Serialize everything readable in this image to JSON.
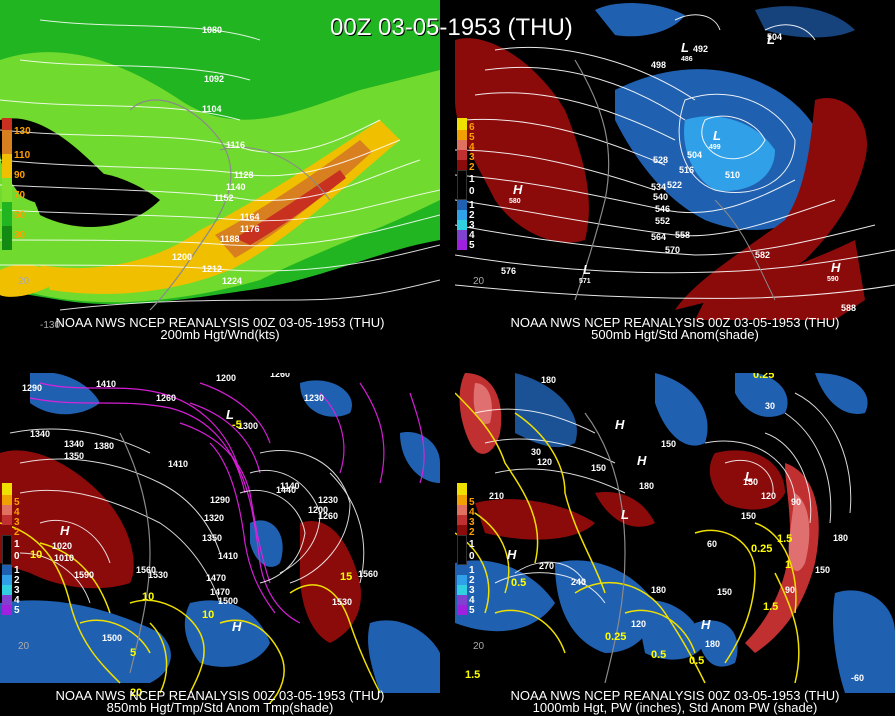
{
  "main_title": "00Z 03-05-1953 (THU)",
  "panels": [
    {
      "id": "p1",
      "line1": "NOAA NWS NCEP REANALYSIS 00Z 03-05-1953 (THU)",
      "line2": "200mb Hgt/Wnd(kts)",
      "legend": [
        "130",
        "110",
        "90",
        "70",
        "50",
        "30"
      ],
      "contour_labels": [
        "1080",
        "1092",
        "1104",
        "1116",
        "1128",
        "1140",
        "1152",
        "1164",
        "1176",
        "1188",
        "1200",
        "1212",
        "1224"
      ],
      "side_labels": [
        "20",
        "-130"
      ]
    },
    {
      "id": "p2",
      "line1": "NOAA NWS NCEP REANALYSIS 00Z 03-05-1953 (THU)",
      "line2": "500mb Hgt/Std Anom(shade)",
      "legend": [
        "6",
        "5",
        "4",
        "3",
        "2",
        "1",
        "0",
        "1",
        "2",
        "3",
        "4",
        "5"
      ],
      "contour_labels": [
        "492",
        "498",
        "504",
        "504",
        "510",
        "516",
        "522",
        "528",
        "534",
        "540",
        "546",
        "552",
        "558",
        "564",
        "570",
        "576",
        "582",
        "588"
      ],
      "highs_lows": [
        {
          "t": "L",
          "v": "486"
        },
        {
          "t": "L",
          "v": "499"
        },
        {
          "t": "L",
          "v": "571"
        },
        {
          "t": "H",
          "v": "580"
        },
        {
          "t": "H",
          "v": "590"
        },
        {
          "t": "L",
          "v": ""
        }
      ],
      "side_labels": [
        "20"
      ]
    },
    {
      "id": "p3",
      "line1": "NOAA NWS NCEP REANALYSIS 00Z 03-05-1953 (THU)",
      "line2": "850mb Hgt/Tmp/Std Anom Tmp(shade)",
      "legend": [
        "5",
        "4",
        "3",
        "2",
        "1",
        "0",
        "1",
        "2",
        "3",
        "4",
        "5"
      ],
      "contour_labels": [
        "1290",
        "1340",
        "1410",
        "1200",
        "1260",
        "1230",
        "1260",
        "1300",
        "1340",
        "1350",
        "1380",
        "1410",
        "1290",
        "1320",
        "1350",
        "1410",
        "1440",
        "1470",
        "1500",
        "1530",
        "1560",
        "1590",
        "1500",
        "1470",
        "1140",
        "1200",
        "1230",
        "1260",
        "1560",
        "1530",
        "1010",
        "1020"
      ],
      "temp_labels": [
        "10",
        "10",
        "10",
        "5",
        "15",
        "20",
        "-5"
      ],
      "side_labels": [
        "20"
      ]
    },
    {
      "id": "p4",
      "line1": "NOAA NWS NCEP REANALYSIS 00Z 03-05-1953 (THU)",
      "line2": "1000mb Hgt, PW (inches), Std Anom PW (shade)",
      "legend": [
        "5",
        "4",
        "3",
        "2",
        "1",
        "0",
        "1",
        "2",
        "3",
        "4",
        "5"
      ],
      "contour_labels": [
        "180",
        "150",
        "120",
        "150",
        "180",
        "60",
        "30",
        "210",
        "240",
        "270",
        "180",
        "120",
        "150",
        "180",
        "90",
        "150",
        "120",
        "180",
        "150",
        "150",
        "90",
        "30",
        "-60"
      ],
      "pw_labels": [
        "0.25",
        "0.5",
        "0.25",
        "0.5",
        "1",
        "1.5",
        "1.5",
        "0.25",
        "0.5",
        "1.5"
      ],
      "side_labels": [
        "20"
      ]
    }
  ],
  "colors": {
    "jet_green": "#22b522",
    "jet_lime": "#7fe030",
    "jet_yellow": "#f0c000",
    "jet_orange": "#d88020",
    "jet_red": "#c83020",
    "anom_pos": "#8b0b0b",
    "anom_neg": "#2060b0",
    "anom_neg2": "#30a0e8",
    "contour_white": "#ffffff",
    "contour_yellow": "#f0f000",
    "contour_magenta": "#e020e0"
  }
}
